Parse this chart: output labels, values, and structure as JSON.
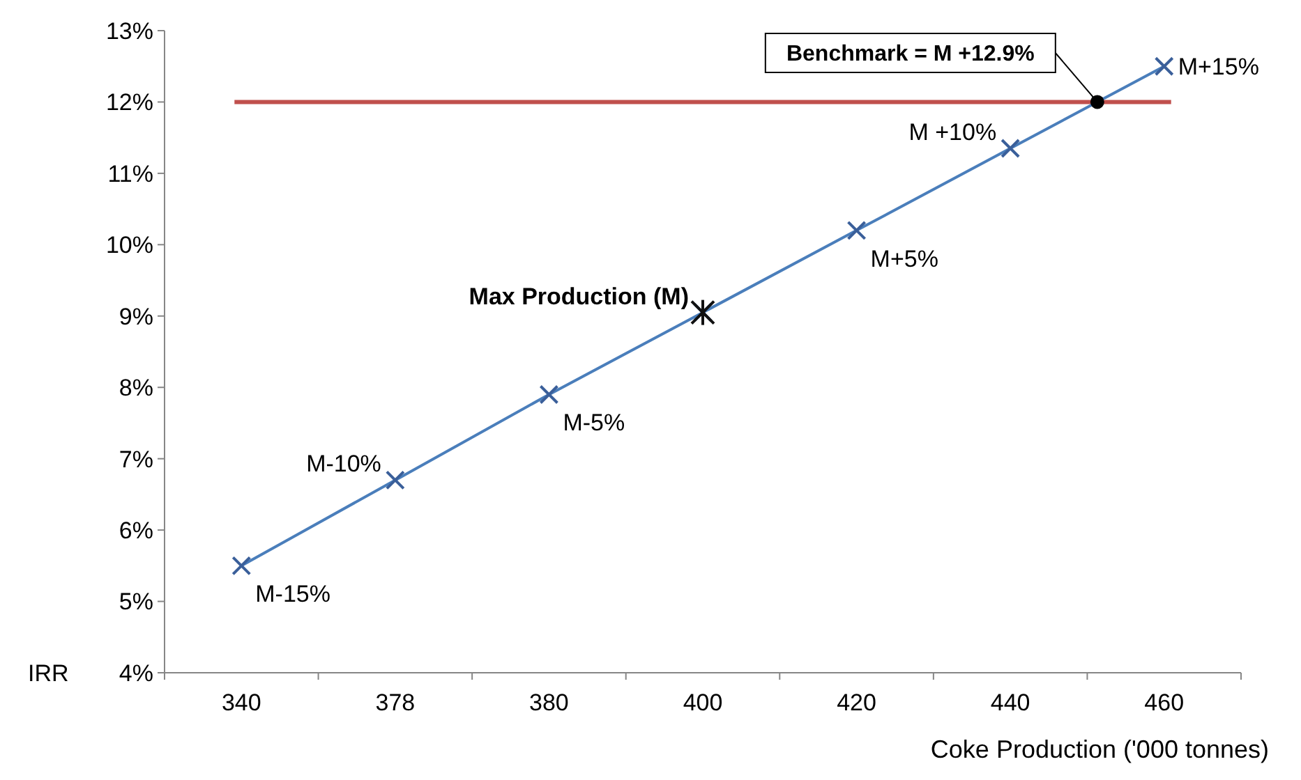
{
  "chart_data": {
    "type": "line",
    "ylabel": "IRR",
    "xlabel": "Coke Production ('000 tonnes)",
    "categories": [
      "340",
      "378",
      "380",
      "400",
      "420",
      "440",
      "460"
    ],
    "series": [
      {
        "color": "#4a7ebb",
        "values": [
          5.5,
          6.7,
          7.9,
          9.05,
          10.2,
          11.35,
          12.5
        ]
      }
    ],
    "marker": "cross",
    "line_style": "solid",
    "grid": false,
    "ylim": [
      4,
      13
    ],
    "yticks": [
      {
        "value": 4,
        "label": "4%"
      },
      {
        "value": 5,
        "label": "5%"
      },
      {
        "value": 6,
        "label": "6%"
      },
      {
        "value": 7,
        "label": "7%"
      },
      {
        "value": 8,
        "label": "8%"
      },
      {
        "value": 9,
        "label": "9%"
      },
      {
        "value": 10,
        "label": "10%"
      },
      {
        "value": 11,
        "label": "11%"
      },
      {
        "value": 12,
        "label": "12%"
      },
      {
        "value": 13,
        "label": "13%"
      }
    ],
    "ref_lines": [
      {
        "axis": "y",
        "value": 12,
        "color": "#c0504d"
      }
    ],
    "annotations": [
      {
        "text": "M-15%",
        "x": "340",
        "y": 5.5
      },
      {
        "text": "M-10%",
        "x": "378",
        "y": 6.7
      },
      {
        "text": "M-5%",
        "x": "380",
        "y": 7.9
      },
      {
        "text": "Max Production (M)",
        "x": "400",
        "y": 9.05
      },
      {
        "text": "M+5%",
        "x": "420",
        "y": 10.2
      },
      {
        "text": "M +10%",
        "x": "440",
        "y": 11.35
      },
      {
        "text": "M+15%",
        "x": "460",
        "y": 12.5
      },
      {
        "text": "Benchmark = M +12.9%",
        "y": 12
      }
    ]
  }
}
